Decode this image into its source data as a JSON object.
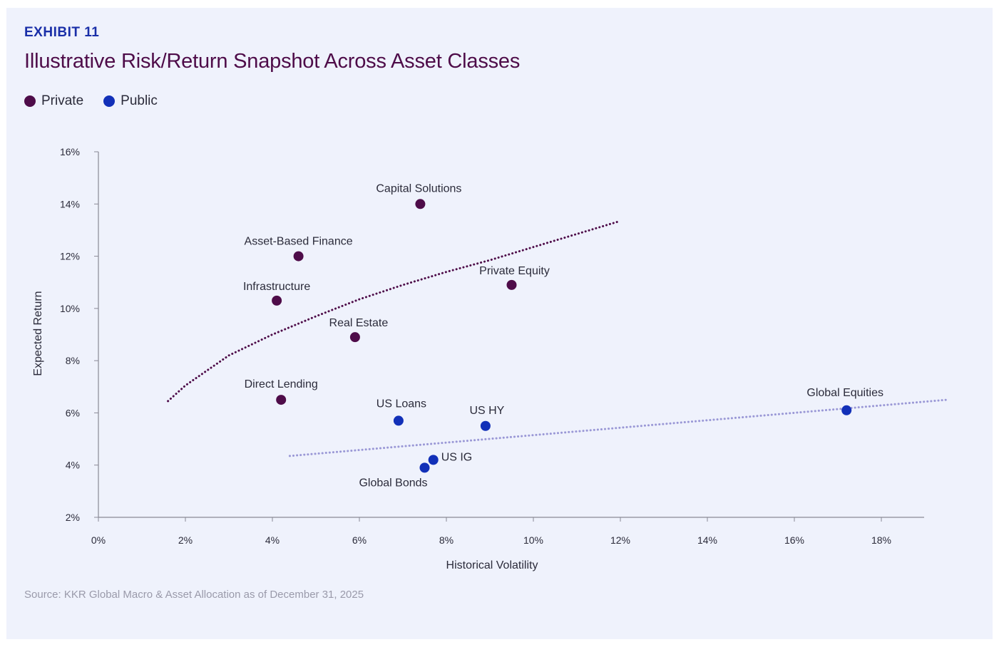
{
  "header": {
    "exhibit": "EXHIBIT 11",
    "title": "Illustrative Risk/Return Snapshot Across Asset Classes"
  },
  "footer": {
    "source": "Source: KKR Global Macro & Asset Allocation as of December 31, 2025"
  },
  "colors": {
    "private": "#4e0c49",
    "public": "#1230b8",
    "public_trend": "#9a98d6"
  },
  "chart_data": {
    "type": "scatter",
    "xlabel": "Historical Volatility",
    "ylabel": "Expected Return",
    "xlim": [
      0,
      19
    ],
    "ylim": [
      2,
      16
    ],
    "x_ticks": [
      {
        "value": 0,
        "label": "0%"
      },
      {
        "value": 2,
        "label": "2%"
      },
      {
        "value": 4,
        "label": "4%"
      },
      {
        "value": 6,
        "label": "6%"
      },
      {
        "value": 8,
        "label": "8%"
      },
      {
        "value": 10,
        "label": "10%"
      },
      {
        "value": 12,
        "label": "12%"
      },
      {
        "value": 14,
        "label": "14%"
      },
      {
        "value": 16,
        "label": "16%"
      },
      {
        "value": 18,
        "label": "18%"
      }
    ],
    "y_ticks": [
      {
        "value": 2,
        "label": "2%"
      },
      {
        "value": 4,
        "label": "4%"
      },
      {
        "value": 6,
        "label": "6%"
      },
      {
        "value": 8,
        "label": "8%"
      },
      {
        "value": 10,
        "label": "10%"
      },
      {
        "value": 12,
        "label": "12%"
      },
      {
        "value": 14,
        "label": "14%"
      },
      {
        "value": 16,
        "label": "16%"
      }
    ],
    "legend": "top-left",
    "grid": false,
    "series": [
      {
        "name": "Private",
        "points": [
          {
            "label": "Capital Solutions",
            "x": 7.4,
            "y": 14.0
          },
          {
            "label": "Asset-Based Finance",
            "x": 4.6,
            "y": 12.0
          },
          {
            "label": "Infrastructure",
            "x": 4.1,
            "y": 10.3
          },
          {
            "label": "Private Equity",
            "x": 9.5,
            "y": 10.9
          },
          {
            "label": "Real Estate",
            "x": 5.9,
            "y": 8.9
          },
          {
            "label": "Direct Lending",
            "x": 4.2,
            "y": 6.5
          }
        ],
        "trendline": [
          {
            "x": 1.6,
            "y": 6.45
          },
          {
            "x": 2.0,
            "y": 7.05
          },
          {
            "x": 3.0,
            "y": 8.2
          },
          {
            "x": 4.0,
            "y": 9.0
          },
          {
            "x": 5.0,
            "y": 9.7
          },
          {
            "x": 6.0,
            "y": 10.35
          },
          {
            "x": 7.0,
            "y": 10.9
          },
          {
            "x": 8.0,
            "y": 11.4
          },
          {
            "x": 9.0,
            "y": 11.85
          },
          {
            "x": 10.0,
            "y": 12.35
          },
          {
            "x": 11.0,
            "y": 12.85
          },
          {
            "x": 12.0,
            "y": 13.35
          }
        ]
      },
      {
        "name": "Public",
        "points": [
          {
            "label": "US Loans",
            "x": 6.9,
            "y": 5.7
          },
          {
            "label": "US HY",
            "x": 8.9,
            "y": 5.5
          },
          {
            "label": "US IG",
            "x": 7.7,
            "y": 4.2
          },
          {
            "label": "Global Bonds",
            "x": 7.5,
            "y": 3.9
          },
          {
            "label": "Global Equities",
            "x": 17.2,
            "y": 6.1
          }
        ],
        "trendline": [
          {
            "x": 4.4,
            "y": 4.35
          },
          {
            "x": 19.5,
            "y": 6.5
          }
        ]
      }
    ]
  }
}
